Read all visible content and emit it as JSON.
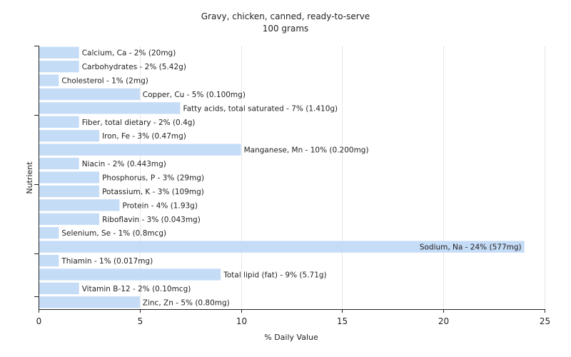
{
  "chart_data": {
    "type": "bar",
    "orientation": "horizontal",
    "title": "Gravy, chicken, canned, ready-to-serve",
    "subtitle": "100 grams",
    "xlabel": "% Daily Value",
    "ylabel": "Nutrient",
    "xlim": [
      0,
      25
    ],
    "xticks": [
      0,
      5,
      10,
      15,
      20,
      25
    ],
    "grid": true,
    "bar_color": "#c5dcf7",
    "categories": [
      "Calcium, Ca",
      "Carbohydrates",
      "Cholesterol",
      "Copper, Cu",
      "Fatty acids, total saturated",
      "Fiber, total dietary",
      "Iron, Fe",
      "Manganese, Mn",
      "Niacin",
      "Phosphorus, P",
      "Potassium, K",
      "Protein",
      "Riboflavin",
      "Selenium, Se",
      "Sodium, Na",
      "Thiamin",
      "Total lipid (fat)",
      "Vitamin B-12",
      "Zinc, Zn"
    ],
    "values": [
      2,
      2,
      1,
      5,
      7,
      2,
      3,
      10,
      2,
      3,
      3,
      4,
      3,
      1,
      24,
      1,
      9,
      2,
      5
    ],
    "labels": [
      "Calcium, Ca - 2% (20mg)",
      "Carbohydrates - 2% (5.42g)",
      "Cholesterol - 1% (2mg)",
      "Copper, Cu - 5% (0.100mg)",
      "Fatty acids, total saturated - 7% (1.410g)",
      "Fiber, total dietary - 2% (0.4g)",
      "Iron, Fe - 3% (0.47mg)",
      "Manganese, Mn - 10% (0.200mg)",
      "Niacin - 2% (0.443mg)",
      "Phosphorus, P - 3% (29mg)",
      "Potassium, K - 3% (109mg)",
      "Protein - 4% (1.93g)",
      "Riboflavin - 3% (0.043mg)",
      "Selenium, Se - 1% (0.8mcg)",
      "Sodium, Na - 24% (577mg)",
      "Thiamin - 1% (0.017mg)",
      "Total lipid (fat) - 9% (5.71g)",
      "Vitamin B-12 - 2% (0.10mcg)",
      "Zinc, Zn - 5% (0.80mg)"
    ]
  }
}
